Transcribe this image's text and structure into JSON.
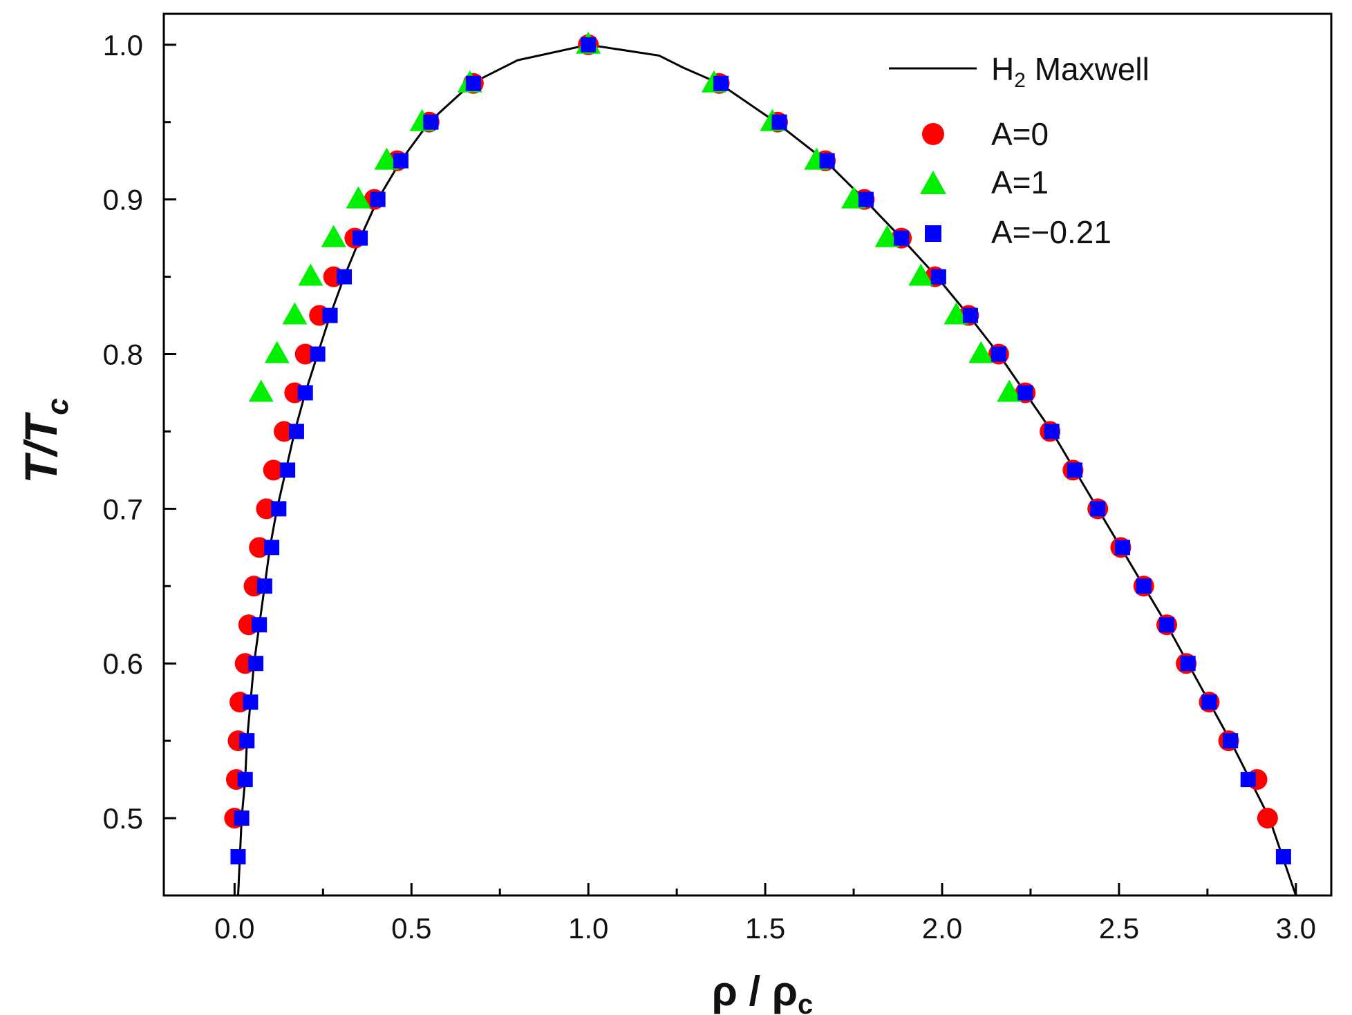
{
  "chart_data": {
    "type": "scatter",
    "title": "",
    "xlabel": {
      "main": "ρ / ρ",
      "sub": "c"
    },
    "ylabel": {
      "main": "T/T",
      "sub": "c"
    },
    "xlim": [
      -0.2,
      3.1
    ],
    "ylim": [
      0.45,
      1.02
    ],
    "x_ticks": [
      "0.0",
      "0.5",
      "1.0",
      "1.5",
      "2.0",
      "2.5",
      "3.0"
    ],
    "x_tick_values": [
      0,
      0.5,
      1.0,
      1.5,
      2.0,
      2.5,
      3.0
    ],
    "y_ticks": [
      "0.5",
      "0.6",
      "0.7",
      "0.8",
      "0.9",
      "1.0"
    ],
    "y_tick_values": [
      0.5,
      0.6,
      0.7,
      0.8,
      0.9,
      1.0
    ],
    "grid": false,
    "legend_position": "top-right",
    "colors": {
      "line": "#000000",
      "circle": "#ff0000",
      "triangle": "#00ee00",
      "square": "#0000ff"
    },
    "series": [
      {
        "name": "H₂ Maxwell",
        "legend_main": "H",
        "legend_sub": "2",
        "legend_rest": " Maxwell",
        "kind": "line",
        "color": "#000000",
        "points": [
          [
            0.01,
            0.45
          ],
          [
            0.02,
            0.5
          ],
          [
            0.03,
            0.525
          ],
          [
            0.035,
            0.55
          ],
          [
            0.045,
            0.575
          ],
          [
            0.055,
            0.6
          ],
          [
            0.07,
            0.625
          ],
          [
            0.085,
            0.65
          ],
          [
            0.1,
            0.675
          ],
          [
            0.12,
            0.7
          ],
          [
            0.145,
            0.725
          ],
          [
            0.17,
            0.75
          ],
          [
            0.2,
            0.775
          ],
          [
            0.235,
            0.8
          ],
          [
            0.27,
            0.825
          ],
          [
            0.31,
            0.85
          ],
          [
            0.355,
            0.875
          ],
          [
            0.405,
            0.9
          ],
          [
            0.47,
            0.925
          ],
          [
            0.55,
            0.95
          ],
          [
            0.67,
            0.975
          ],
          [
            0.8,
            0.99
          ],
          [
            1.0,
            1.0
          ],
          [
            1.2,
            0.993
          ],
          [
            1.27,
            0.985
          ],
          [
            1.37,
            0.975
          ],
          [
            1.53,
            0.95
          ],
          [
            1.67,
            0.925
          ],
          [
            1.78,
            0.9
          ],
          [
            1.885,
            0.875
          ],
          [
            1.985,
            0.85
          ],
          [
            2.075,
            0.825
          ],
          [
            2.16,
            0.8
          ],
          [
            2.235,
            0.775
          ],
          [
            2.31,
            0.75
          ],
          [
            2.375,
            0.725
          ],
          [
            2.44,
            0.7
          ],
          [
            2.505,
            0.675
          ],
          [
            2.57,
            0.65
          ],
          [
            2.635,
            0.625
          ],
          [
            2.695,
            0.6
          ],
          [
            2.755,
            0.575
          ],
          [
            2.815,
            0.55
          ],
          [
            2.87,
            0.525
          ],
          [
            2.925,
            0.5
          ],
          [
            3.0,
            0.45
          ]
        ]
      },
      {
        "name": "A=0",
        "kind": "circle",
        "color": "#ff0000",
        "points": [
          [
            0.0,
            0.5
          ],
          [
            0.005,
            0.525
          ],
          [
            0.01,
            0.55
          ],
          [
            0.015,
            0.575
          ],
          [
            0.03,
            0.6
          ],
          [
            0.04,
            0.625
          ],
          [
            0.055,
            0.65
          ],
          [
            0.07,
            0.675
          ],
          [
            0.09,
            0.7
          ],
          [
            0.11,
            0.725
          ],
          [
            0.14,
            0.75
          ],
          [
            0.17,
            0.775
          ],
          [
            0.2,
            0.8
          ],
          [
            0.24,
            0.825
          ],
          [
            0.28,
            0.85
          ],
          [
            0.34,
            0.875
          ],
          [
            0.395,
            0.9
          ],
          [
            0.46,
            0.925
          ],
          [
            0.55,
            0.95
          ],
          [
            0.675,
            0.975
          ],
          [
            1.0,
            1.0
          ],
          [
            1.37,
            0.975
          ],
          [
            1.535,
            0.95
          ],
          [
            1.67,
            0.925
          ],
          [
            1.78,
            0.9
          ],
          [
            1.885,
            0.875
          ],
          [
            1.98,
            0.85
          ],
          [
            2.075,
            0.825
          ],
          [
            2.16,
            0.8
          ],
          [
            2.235,
            0.775
          ],
          [
            2.305,
            0.75
          ],
          [
            2.37,
            0.725
          ],
          [
            2.44,
            0.7
          ],
          [
            2.505,
            0.675
          ],
          [
            2.57,
            0.65
          ],
          [
            2.635,
            0.625
          ],
          [
            2.69,
            0.6
          ],
          [
            2.755,
            0.575
          ],
          [
            2.81,
            0.55
          ],
          [
            2.89,
            0.525
          ],
          [
            2.92,
            0.5
          ]
        ]
      },
      {
        "name": "A=1",
        "kind": "triangle",
        "color": "#00ee00",
        "points": [
          [
            0.075,
            0.775
          ],
          [
            0.12,
            0.8
          ],
          [
            0.17,
            0.825
          ],
          [
            0.215,
            0.85
          ],
          [
            0.28,
            0.875
          ],
          [
            0.35,
            0.9
          ],
          [
            0.43,
            0.925
          ],
          [
            0.53,
            0.95
          ],
          [
            0.665,
            0.975
          ],
          [
            1.0,
            1.0
          ],
          [
            1.355,
            0.975
          ],
          [
            1.52,
            0.95
          ],
          [
            1.645,
            0.925
          ],
          [
            1.75,
            0.9
          ],
          [
            1.845,
            0.875
          ],
          [
            1.94,
            0.85
          ],
          [
            2.04,
            0.825
          ],
          [
            2.11,
            0.8
          ],
          [
            2.19,
            0.775
          ]
        ]
      },
      {
        "name": "A=−0.21",
        "legend_label": "A=−0.21",
        "kind": "square",
        "color": "#0000ff",
        "points": [
          [
            0.01,
            0.475
          ],
          [
            0.02,
            0.5
          ],
          [
            0.03,
            0.525
          ],
          [
            0.035,
            0.55
          ],
          [
            0.045,
            0.575
          ],
          [
            0.06,
            0.6
          ],
          [
            0.07,
            0.625
          ],
          [
            0.085,
            0.65
          ],
          [
            0.105,
            0.675
          ],
          [
            0.125,
            0.7
          ],
          [
            0.15,
            0.725
          ],
          [
            0.175,
            0.75
          ],
          [
            0.2,
            0.775
          ],
          [
            0.235,
            0.8
          ],
          [
            0.27,
            0.825
          ],
          [
            0.31,
            0.85
          ],
          [
            0.355,
            0.875
          ],
          [
            0.405,
            0.9
          ],
          [
            0.47,
            0.925
          ],
          [
            0.555,
            0.95
          ],
          [
            0.675,
            0.975
          ],
          [
            1.0,
            1.0
          ],
          [
            1.375,
            0.975
          ],
          [
            1.54,
            0.95
          ],
          [
            1.675,
            0.925
          ],
          [
            1.785,
            0.9
          ],
          [
            1.885,
            0.875
          ],
          [
            1.99,
            0.85
          ],
          [
            2.08,
            0.825
          ],
          [
            2.16,
            0.8
          ],
          [
            2.235,
            0.775
          ],
          [
            2.31,
            0.75
          ],
          [
            2.375,
            0.725
          ],
          [
            2.44,
            0.7
          ],
          [
            2.51,
            0.675
          ],
          [
            2.57,
            0.65
          ],
          [
            2.635,
            0.625
          ],
          [
            2.695,
            0.6
          ],
          [
            2.755,
            0.575
          ],
          [
            2.815,
            0.55
          ],
          [
            2.865,
            0.525
          ],
          [
            2.965,
            0.475
          ]
        ]
      }
    ]
  }
}
